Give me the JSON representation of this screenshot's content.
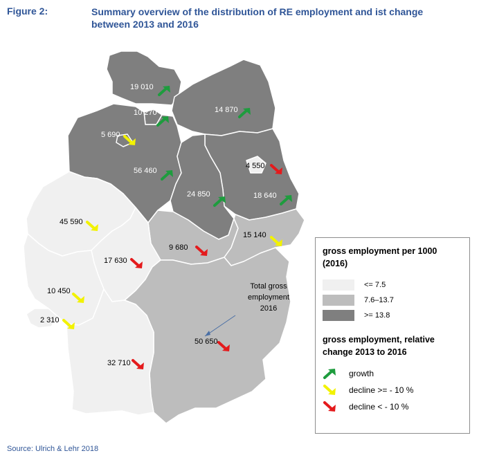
{
  "figure_label": "Figure 2:",
  "title_line1": "Summary overview of the distribution of RE employment and ist change",
  "title_line2": "between 2013 and 2016",
  "source": "Source: Ulrich & Lehr 2018",
  "annotation": {
    "line1": "Total gross",
    "line2": "employment",
    "line3": "2016"
  },
  "colors": {
    "light": "#f0f0f0",
    "medium": "#bdbdbd",
    "dark": "#7f7f7f",
    "growth": "#1e9c3e",
    "decline_small": "#f2f200",
    "decline_large": "#e41a1c",
    "title": "#2f5597"
  },
  "states": [
    {
      "name": "Schleswig-Holstein",
      "value": "19 010",
      "category": "dark",
      "change": "growth"
    },
    {
      "name": "Hamburg",
      "value": "10 270",
      "category": "dark",
      "change": "growth"
    },
    {
      "name": "Mecklenburg-Vorpommern",
      "value": "14 870",
      "category": "dark",
      "change": "growth"
    },
    {
      "name": "Bremen",
      "value": "5 690",
      "category": "dark",
      "change": "decline_small"
    },
    {
      "name": "Niedersachsen",
      "value": "56 460",
      "category": "dark",
      "change": "growth"
    },
    {
      "name": "Berlin",
      "value": "4 550",
      "category": "light",
      "change": "decline_large"
    },
    {
      "name": "Brandenburg",
      "value": "18 640",
      "category": "dark",
      "change": "growth"
    },
    {
      "name": "Sachsen-Anhalt",
      "value": "24 850",
      "category": "dark",
      "change": "growth"
    },
    {
      "name": "Nordrhein-Westfalen",
      "value": "45 590",
      "category": "light",
      "change": "decline_small"
    },
    {
      "name": "Thüringen",
      "value": "9 680",
      "category": "medium",
      "change": "decline_large"
    },
    {
      "name": "Sachsen",
      "value": "15 140",
      "category": "medium",
      "change": "decline_small"
    },
    {
      "name": "Hessen",
      "value": "17 630",
      "category": "light",
      "change": "decline_large"
    },
    {
      "name": "Rheinland-Pfalz",
      "value": "10 450",
      "category": "light",
      "change": "decline_small"
    },
    {
      "name": "Saarland",
      "value": "2 310",
      "category": "light",
      "change": "decline_small"
    },
    {
      "name": "Bayern",
      "value": "50 650",
      "category": "medium",
      "change": "decline_large"
    },
    {
      "name": "Baden-Württemberg",
      "value": "32 710",
      "category": "light",
      "change": "decline_large"
    }
  ],
  "legend": {
    "title_line1": "gross employment per 1000",
    "title_line2": "(2016)",
    "classes": [
      {
        "label": "<= 7.5",
        "category": "light"
      },
      {
        "label": "7.6–13.7",
        "category": "medium"
      },
      {
        "label": ">= 13.8",
        "category": "dark"
      }
    ],
    "change_title_line1": "gross employment, relative",
    "change_title_line2": "change 2013 to 2016",
    "changes": [
      {
        "label": "growth",
        "type": "growth"
      },
      {
        "label": "decline >= - 10 %",
        "type": "decline_small"
      },
      {
        "label": "decline < - 10 %",
        "type": "decline_large"
      }
    ]
  }
}
